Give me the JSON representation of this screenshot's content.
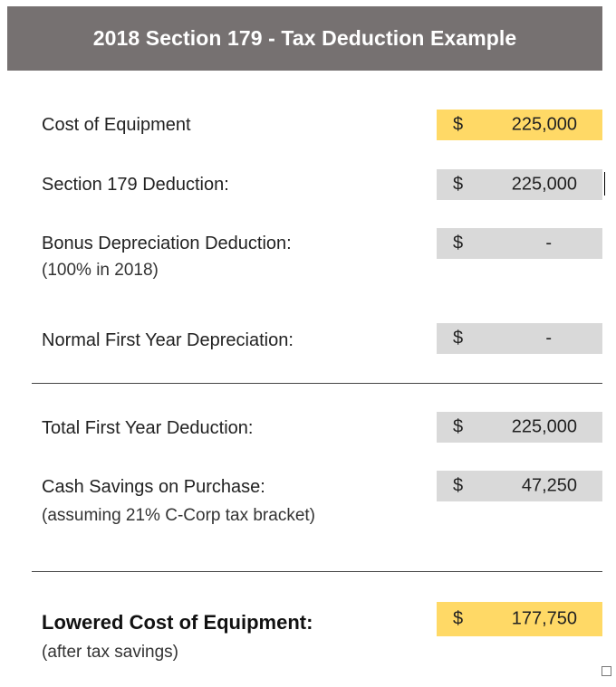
{
  "header": {
    "title": "2018 Section 179 - Tax Deduction Example"
  },
  "rows": [
    {
      "label": "Cost of Equipment",
      "sublabel": "",
      "currency": "$",
      "amount": "225,000"
    },
    {
      "label": "Section 179 Deduction:",
      "sublabel": "",
      "currency": "$",
      "amount": "225,000"
    },
    {
      "label": "Bonus Depreciation Deduction:",
      "sublabel": "(100% in 2018)",
      "currency": "$",
      "amount": "-"
    },
    {
      "label": "Normal First Year Depreciation:",
      "sublabel": "",
      "currency": "$",
      "amount": "-"
    },
    {
      "label": "Total First Year Deduction:",
      "sublabel": "",
      "currency": "$",
      "amount": "225,000"
    },
    {
      "label": "Cash Savings on Purchase:",
      "sublabel": "(assuming 21% C-Corp tax bracket)",
      "currency": "$",
      "amount": "47,250"
    },
    {
      "label": "Lowered Cost of Equipment:",
      "sublabel": "(after tax savings)",
      "currency": "$",
      "amount": "177,750"
    }
  ],
  "colors": {
    "header_bg": "#767171",
    "value_box": "#d9d9d9",
    "highlight": "#ffd966"
  }
}
